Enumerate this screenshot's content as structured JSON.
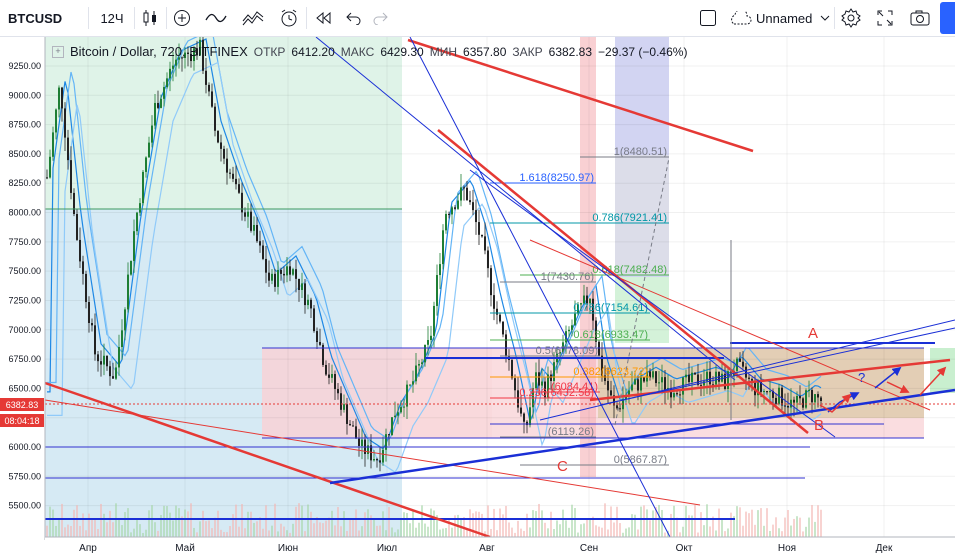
{
  "toolbar": {
    "symbol": "BTCUSD",
    "interval": "12Ч",
    "layout_name": "Unnamed"
  },
  "legend": {
    "title": "Bitcoin / Dollar, 720, BITFINEX",
    "open_label": "ОТКР",
    "open": "6412.20",
    "high_label": "МАКС",
    "high": "6429.30",
    "low_label": "МИН",
    "low": "6357.80",
    "close_label": "ЗАКР",
    "close": "6382.83",
    "change": "−29.37 (−0.46%)"
  },
  "price_axis": {
    "ticks": [
      "9250.00",
      "9000.00",
      "8750.00",
      "8500.00",
      "8250.00",
      "8000.00",
      "7750.00",
      "7500.00",
      "7250.00",
      "7000.00",
      "6750.00",
      "6500.00",
      "6250.00",
      "6000.00",
      "5750.00",
      "5500.00"
    ],
    "current_price": "6382.83",
    "countdown": "08:04:18"
  },
  "time_axis": {
    "ticks": [
      "Апр",
      "Май",
      "Июн",
      "Июл",
      "Авг",
      "Сен",
      "Окт",
      "Ноя",
      "Дек"
    ]
  },
  "fib_levels": [
    {
      "label": "1(8480.51)",
      "color": "#787b86"
    },
    {
      "label": "1.618(8250.97)",
      "color": "#2962ff"
    },
    {
      "label": "0.786(7921.41)",
      "color": "#0097a7"
    },
    {
      "label": "0.618(7482.48)",
      "color": "#4caf50"
    },
    {
      "label": "1(7430.76)",
      "color": "#787b86"
    },
    {
      "label": "0.786(7154.61)",
      "color": "#0097a7"
    },
    {
      "label": "0.618(6933.47)",
      "color": "#4caf50"
    },
    {
      "label": "0.5(6778.09)",
      "color": "#787b86"
    },
    {
      "label": "0.382(6623.72)",
      "color": "#ff9800"
    },
    {
      "label": "0.236(6432.58)",
      "color": "#f23645"
    },
    {
      "label": "(6084.41)",
      "color": "#f23645"
    },
    {
      "label": "(6119.26)",
      "color": "#787b86"
    },
    {
      "label": "0(5867.87)",
      "color": "#787b86"
    }
  ],
  "wave_labels": {
    "a": "A",
    "b": "B",
    "c": "C",
    "q": "?"
  },
  "colors": {
    "up": "#1e7e34",
    "down": "#222222",
    "accent": "#2962ff",
    "trend_red": "#e53935",
    "trend_blue": "#1a2fd6"
  }
}
